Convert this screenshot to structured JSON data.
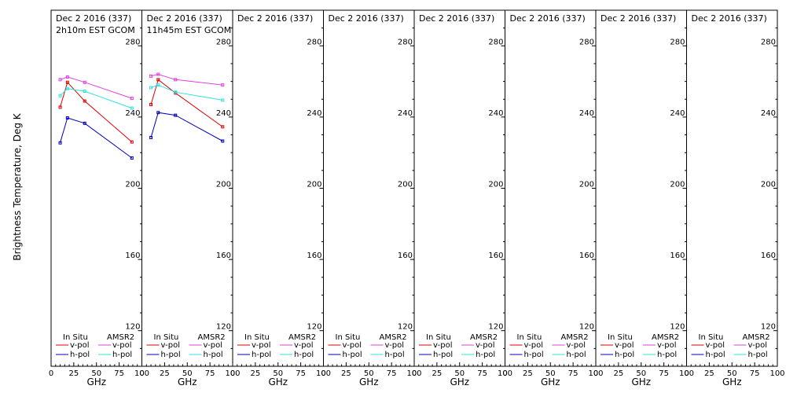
{
  "chart_data": {
    "type": "line",
    "ylabel": "Brightness Temperature, Deg K",
    "xlabel": "GHz",
    "xlim": [
      0,
      100
    ],
    "ylim": [
      100,
      300
    ],
    "x_ticks": [
      0,
      25,
      50,
      75,
      100
    ],
    "y_ticks": [
      120,
      160,
      200,
      240,
      280
    ],
    "legend": {
      "placement": "bottom",
      "left_header": "In Situ",
      "right_header": "AMSR2",
      "entries": [
        {
          "label": "v-pol",
          "color": "#dd0000",
          "column": "left"
        },
        {
          "label": "h-pol",
          "color": "#0000bb",
          "column": "left"
        },
        {
          "label": "v-pol",
          "color": "#e040e0",
          "column": "right"
        },
        {
          "label": "h-pol",
          "color": "#30e0e0",
          "column": "right"
        }
      ]
    },
    "panels": [
      {
        "title": "Dec 2 2016 (337)",
        "subtitle": "2h10m EST GCOM",
        "series": [
          {
            "source": "In Situ",
            "pol": "v-pol",
            "color": "#dd0000",
            "x": [
              10,
              18,
              37,
              89
            ],
            "y": [
              245.5,
              259.5,
              249,
              226
            ]
          },
          {
            "source": "In Situ",
            "pol": "h-pol",
            "color": "#0000bb",
            "x": [
              10,
              18,
              37,
              89
            ],
            "y": [
              225.5,
              239.5,
              236.5,
              217
            ]
          },
          {
            "source": "AMSR2",
            "pol": "v-pol",
            "color": "#e040e0",
            "x": [
              10,
              18,
              37,
              89
            ],
            "y": [
              261,
              262.5,
              259.5,
              250.5
            ]
          },
          {
            "source": "AMSR2",
            "pol": "h-pol",
            "color": "#30e0e0",
            "x": [
              10,
              18,
              37,
              89
            ],
            "y": [
              252,
              256,
              254.5,
              245
            ]
          }
        ]
      },
      {
        "title": "Dec 2 2016 (337)",
        "subtitle": "11h45m EST GCOM",
        "series": [
          {
            "source": "In Situ",
            "pol": "v-pol",
            "color": "#dd0000",
            "x": [
              10,
              18,
              37,
              89
            ],
            "y": [
              247,
              261,
              253.5,
              234.5
            ]
          },
          {
            "source": "In Situ",
            "pol": "h-pol",
            "color": "#0000bb",
            "x": [
              10,
              18,
              37,
              89
            ],
            "y": [
              228.5,
              242.5,
              241,
              226.5
            ]
          },
          {
            "source": "AMSR2",
            "pol": "v-pol",
            "color": "#e040e0",
            "x": [
              10,
              18,
              37,
              89
            ],
            "y": [
              263,
              264,
              261,
              258
            ]
          },
          {
            "source": "AMSR2",
            "pol": "h-pol",
            "color": "#30e0e0",
            "x": [
              10,
              18,
              37,
              89
            ],
            "y": [
              256.5,
              258,
              254,
              249.5
            ]
          }
        ]
      },
      {
        "title": "Dec 2 2016 (337)",
        "subtitle": "",
        "series": []
      },
      {
        "title": "Dec 2 2016 (337)",
        "subtitle": "",
        "series": []
      },
      {
        "title": "Dec 2 2016 (337)",
        "subtitle": "",
        "series": []
      },
      {
        "title": "Dec 2 2016 (337)",
        "subtitle": "",
        "series": []
      },
      {
        "title": "Dec 2 2016 (337)",
        "subtitle": "",
        "series": []
      },
      {
        "title": "Dec 2 2016 (337)",
        "subtitle": "",
        "series": []
      }
    ]
  }
}
